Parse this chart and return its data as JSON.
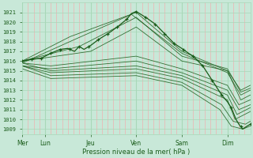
{
  "bg_color": "#c8e8d8",
  "grid_color_h": "#a8d8b8",
  "grid_color_v_minor": "#f0b0b0",
  "grid_color_v_major": "#a8d8b8",
  "line_color": "#1a5c1a",
  "ylabel_ticks": [
    1009,
    1010,
    1011,
    1012,
    1013,
    1014,
    1015,
    1016,
    1017,
    1018,
    1019,
    1020,
    1021
  ],
  "ylim": [
    1008.5,
    1022.0
  ],
  "xlabel": "Pression niveau de la mer( hPa )",
  "day_labels": [
    "Mer",
    "Lun",
    "Jeu",
    "Ven",
    "Sam",
    "Dim"
  ],
  "day_positions": [
    0,
    24,
    72,
    120,
    168,
    216
  ],
  "total_hours": 240
}
